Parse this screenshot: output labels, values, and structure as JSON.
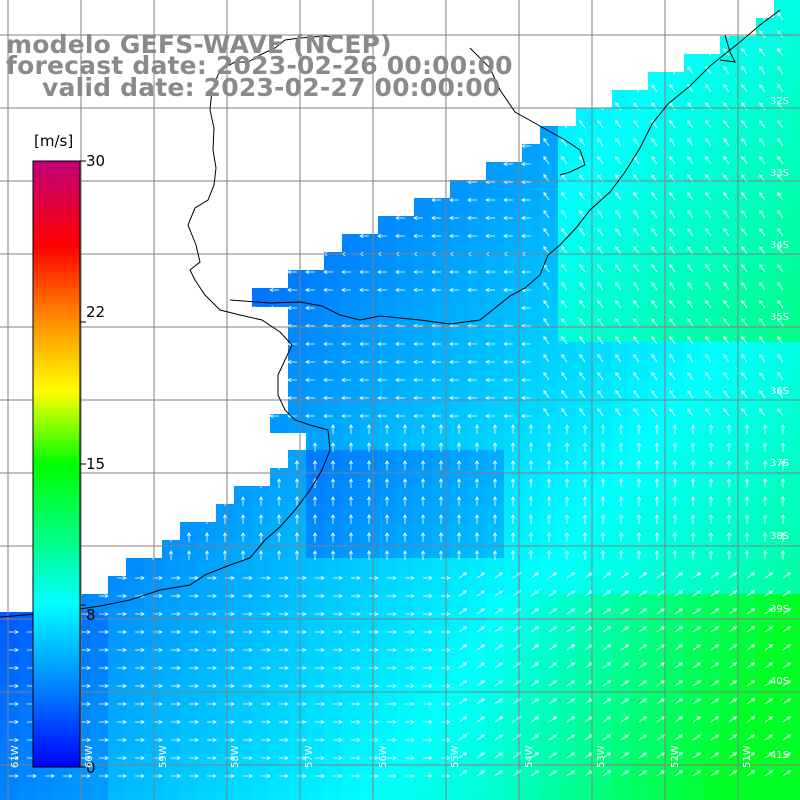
{
  "titles": {
    "line1": "modelo GEFS-WAVE (NCEP)",
    "line2": "forecast date: 2023-02-26 00:00:00",
    "line3": "valid date: 2023-02-27 00:00:00"
  },
  "colorbar": {
    "unit": "[m/s]",
    "ticks": [
      "30",
      "22",
      "15",
      "8",
      "0"
    ],
    "range": [
      0,
      30
    ]
  },
  "axes": {
    "lat_labels": [
      "32S",
      "33S",
      "34S",
      "35S",
      "36S",
      "37S",
      "38S",
      "39S",
      "40S",
      "41S"
    ],
    "lon_labels": [
      "61W",
      "60W",
      "59W",
      "58W",
      "57W",
      "56W",
      "55W",
      "54W",
      "53W",
      "52W",
      "51W"
    ]
  },
  "colors": {
    "land": "#ffffff",
    "coastline": "#000000",
    "grid": "#808080",
    "title_text": "#8a8a8a"
  }
}
